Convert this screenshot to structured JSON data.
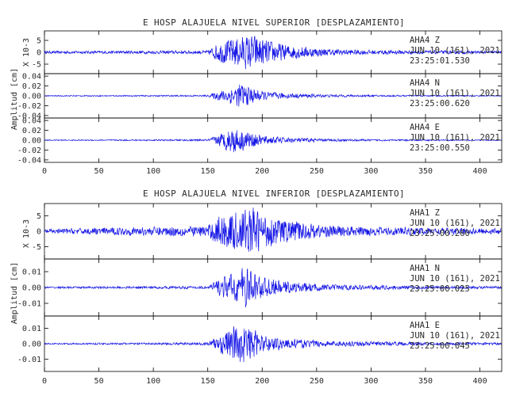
{
  "colors": {
    "trace": "#1414e6",
    "axes": "#000000",
    "text": "#2a2a2a",
    "background": "#ffffff"
  },
  "chart_data": [
    {
      "type": "line",
      "title": "E HOSP ALAJUELA NIVEL SUPERIOR [DESPLAZAMIENTO]",
      "x_ticks": [
        "0",
        "50",
        "100",
        "150",
        "200",
        "250",
        "300",
        "350",
        "400"
      ],
      "xlim": [
        0,
        420
      ],
      "y_axis_label": "Amplitud [cm]",
      "grid": false,
      "panels": [
        {
          "station": "AHA4",
          "component": "Z",
          "scale_label": "X 10-3",
          "date": "JUN 10 (161), 2021",
          "start_time": "23:25:01.530",
          "ylim": [
            -9,
            9
          ],
          "y_ticks": [
            "5",
            "0",
            "-5"
          ],
          "y_tick_values": [
            5,
            0,
            -5
          ],
          "series": [
            {
              "x": [
                0,
                100,
                150,
                160,
                175,
                185,
                192,
                200,
                220,
                260,
                300,
                350,
                420
              ],
              "envelope": [
                0.6,
                0.7,
                0.8,
                4.5,
                6.5,
                7.5,
                8.0,
                6.0,
                3.5,
                1.5,
                1.0,
                0.8,
                0.6
              ]
            }
          ]
        },
        {
          "station": "AHA4",
          "component": "N",
          "date": "JUN 10 (161), 2021",
          "start_time": "23:25:00.620",
          "ylim": [
            -0.045,
            0.045
          ],
          "y_ticks": [
            "0.04",
            "0.02",
            "0.00",
            "-0.02",
            "-0.04"
          ],
          "y_tick_values": [
            0.04,
            0.02,
            0,
            -0.02,
            -0.04
          ],
          "series": [
            {
              "x": [
                0,
                100,
                150,
                160,
                175,
                180,
                190,
                200,
                220,
                260,
                300,
                350,
                420
              ],
              "envelope": [
                0.001,
                0.0015,
                0.002,
                0.01,
                0.022,
                0.028,
                0.018,
                0.01,
                0.006,
                0.003,
                0.002,
                0.0015,
                0.001
              ]
            }
          ]
        },
        {
          "station": "AHA4",
          "component": "E",
          "date": "JUN 10 (161), 2021",
          "start_time": "23:25:00.550",
          "ylim": [
            -0.045,
            0.045
          ],
          "y_ticks": [
            "0.04",
            "0.02",
            "0.00",
            "-0.02",
            "-0.04"
          ],
          "y_tick_values": [
            0.04,
            0.02,
            0,
            -0.02,
            -0.04
          ],
          "series": [
            {
              "x": [
                0,
                100,
                150,
                160,
                172,
                180,
                190,
                200,
                220,
                260,
                300,
                350,
                420
              ],
              "envelope": [
                0.001,
                0.0015,
                0.002,
                0.012,
                0.028,
                0.024,
                0.016,
                0.01,
                0.006,
                0.003,
                0.002,
                0.0015,
                0.001
              ]
            }
          ]
        }
      ]
    },
    {
      "type": "line",
      "title": "E HOSP ALAJUELA NIVEL INFERIOR [DESPLAZAMIENTO]",
      "x_ticks": [
        "0",
        "50",
        "100",
        "150",
        "200",
        "250",
        "300",
        "350",
        "400"
      ],
      "xlim": [
        0,
        420
      ],
      "y_axis_label": "Amplitud [cm]",
      "grid": false,
      "panels": [
        {
          "station": "AHA1",
          "component": "Z",
          "scale_label": "X 10-3",
          "date": "JUN 10 (161), 2021",
          "start_time": "23:25:00.260",
          "ylim": [
            -9,
            9
          ],
          "y_ticks": [
            "5",
            "0",
            "-5"
          ],
          "y_tick_values": [
            5,
            0,
            -5
          ],
          "series": [
            {
              "x": [
                0,
                100,
                150,
                160,
                175,
                185,
                192,
                200,
                220,
                260,
                300,
                350,
                420
              ],
              "envelope": [
                0.8,
                1.5,
                2.0,
                5.5,
                6.5,
                7.5,
                8.5,
                6.0,
                4.0,
                2.0,
                1.5,
                1.2,
                1.0
              ]
            }
          ]
        },
        {
          "station": "AHA1",
          "component": "N",
          "date": "JUN 10 (161), 2021",
          "start_time": "23:25:00.025",
          "ylim": [
            -0.018,
            0.018
          ],
          "y_ticks": [
            "0.01",
            "0.00",
            "-0.01"
          ],
          "y_tick_values": [
            0.01,
            0,
            -0.01
          ],
          "series": [
            {
              "x": [
                0,
                100,
                150,
                160,
                175,
                183,
                192,
                200,
                220,
                260,
                300,
                350,
                420
              ],
              "envelope": [
                0.0006,
                0.0008,
                0.001,
                0.006,
                0.01,
                0.014,
                0.011,
                0.007,
                0.004,
                0.002,
                0.0015,
                0.001,
                0.0008
              ]
            }
          ]
        },
        {
          "station": "AHA1",
          "component": "E",
          "date": "JUN 10 (161), 2021",
          "start_time": "23:25:00.045",
          "ylim": [
            -0.018,
            0.018
          ],
          "y_ticks": [
            "0.01",
            "0.00",
            "-0.01"
          ],
          "y_tick_values": [
            0.01,
            0,
            -0.01
          ],
          "series": [
            {
              "x": [
                0,
                100,
                150,
                160,
                175,
                183,
                192,
                200,
                220,
                260,
                300,
                350,
                420
              ],
              "envelope": [
                0.0005,
                0.0007,
                0.001,
                0.006,
                0.012,
                0.014,
                0.01,
                0.006,
                0.0035,
                0.002,
                0.0015,
                0.001,
                0.0008
              ]
            }
          ]
        }
      ]
    }
  ]
}
